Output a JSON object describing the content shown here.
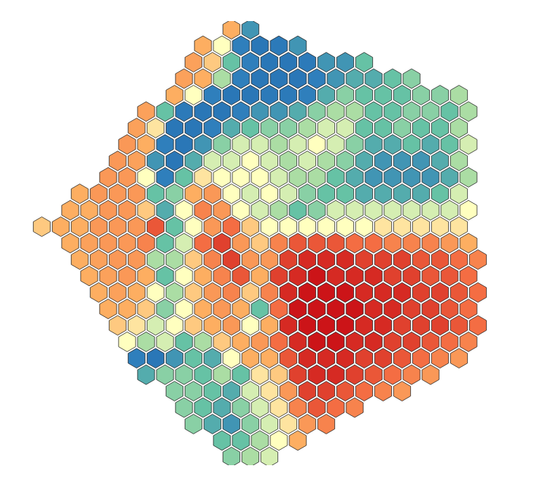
{
  "chart_data": {
    "type": "heatmap",
    "marker": "hexagon",
    "tick_labels": false,
    "zlim": [
      0,
      10
    ],
    "cells": [
      [
        null,
        null,
        null,
        null,
        null,
        null,
        null,
        null,
        null,
        null,
        6.5,
        2,
        null,
        null,
        null,
        null,
        null,
        null,
        null,
        null,
        null,
        null,
        null,
        null
      ],
      [
        null,
        null,
        null,
        null,
        null,
        null,
        null,
        null,
        6.5,
        5,
        1.5,
        1,
        1.2,
        2,
        null,
        null,
        null,
        null,
        null,
        null,
        null,
        null,
        null,
        null
      ],
      [
        null,
        null,
        null,
        null,
        null,
        null,
        null,
        null,
        6.8,
        6,
        3,
        1.5,
        1,
        1,
        1.2,
        2,
        2,
        3,
        null,
        null,
        null,
        null,
        null,
        null
      ],
      [
        null,
        null,
        null,
        null,
        null,
        null,
        null,
        6.8,
        6.5,
        4,
        1.5,
        1,
        1,
        1,
        1.5,
        2,
        2.5,
        2.5,
        3,
        3.5,
        null,
        null,
        null,
        null
      ],
      [
        null,
        null,
        null,
        null,
        null,
        null,
        null,
        6.5,
        5,
        1.5,
        1,
        1,
        1.2,
        1.2,
        1.5,
        2.5,
        3.5,
        3,
        3,
        3,
        3.5,
        3.5,
        4,
        null
      ],
      [
        null,
        null,
        null,
        null,
        null,
        6.8,
        3,
        1.2,
        1,
        1,
        1.5,
        2,
        2,
        2.5,
        3.5,
        4,
        4,
        3,
        3,
        3.5,
        3.5,
        3,
        4,
        null
      ],
      [
        null,
        null,
        null,
        null,
        null,
        6.8,
        5.5,
        1,
        1,
        1.5,
        2.5,
        3,
        3.5,
        3.5,
        4,
        4.5,
        4.5,
        3,
        3,
        3.5,
        3,
        3,
        4,
        null
      ],
      [
        null,
        null,
        null,
        null,
        7,
        6.5,
        1.5,
        1,
        2,
        3.5,
        4.5,
        4.5,
        4,
        4.5,
        5,
        4.5,
        3.5,
        2.5,
        2.5,
        3,
        2.5,
        3,
        4.5,
        null
      ],
      [
        null,
        null,
        null,
        null,
        7,
        6.8,
        2,
        1,
        2.5,
        4.5,
        4.5,
        5,
        4.5,
        4,
        4.5,
        4,
        3.5,
        2.5,
        2,
        2,
        2,
        2.5,
        4,
        null
      ],
      [
        null,
        null,
        null,
        7,
        7,
        5,
        1.5,
        3,
        5.5,
        5,
        5,
        5,
        4.5,
        4,
        4,
        3,
        2.5,
        2,
        2,
        2,
        2,
        2.5,
        4,
        null
      ],
      [
        null,
        null,
        6.5,
        7,
        7,
        7,
        3,
        3.5,
        6.5,
        7,
        5,
        4.5,
        5,
        4.5,
        3.5,
        3,
        3,
        2.5,
        2.5,
        2.5,
        2.5,
        3,
        4.5,
        null
      ],
      [
        null,
        6.5,
        6.5,
        7,
        7,
        6,
        2.5,
        5,
        7.5,
        7,
        5,
        4.5,
        4,
        3,
        3.5,
        4.5,
        4.5,
        4.5,
        4.5,
        4.5,
        4.5,
        4.5,
        5,
        null
      ],
      [
        6,
        6.5,
        6.5,
        7,
        7,
        7,
        8.5,
        3,
        5,
        7,
        8,
        6,
        5,
        5,
        5,
        5,
        5,
        5,
        5.5,
        5.5,
        5.5,
        5.5,
        5.5,
        null
      ],
      [
        null,
        6.5,
        6.8,
        7,
        7,
        7.5,
        3,
        4.5,
        8,
        9,
        7,
        6,
        7.5,
        8.5,
        8.5,
        8.5,
        8,
        8,
        7.5,
        7.5,
        7.5,
        7,
        6.5,
        null
      ],
      [
        null,
        null,
        6.5,
        6.8,
        7,
        7,
        4,
        4,
        6,
        7.5,
        9,
        7,
        7,
        9,
        9.5,
        9.5,
        9.5,
        9,
        9,
        9,
        8.5,
        8.5,
        8,
        7.5
      ],
      [
        null,
        null,
        6.5,
        6.8,
        7,
        6.5,
        3,
        5,
        6.5,
        7.5,
        8.5,
        6.5,
        9,
        9.5,
        10,
        9.5,
        9.5,
        9.5,
        9,
        9,
        8.5,
        8.5,
        8,
        null
      ],
      [
        null,
        null,
        null,
        6.5,
        6.8,
        6.5,
        5,
        4,
        6,
        7,
        7.5,
        6,
        7.5,
        9.5,
        10,
        10,
        10,
        9.5,
        9.5,
        9.5,
        9,
        9,
        8.5,
        8
      ],
      [
        null,
        null,
        null,
        6.5,
        6.5,
        6,
        3.5,
        5,
        6.5,
        7,
        6.5,
        3,
        8,
        10,
        10,
        10,
        10,
        9.5,
        9.5,
        9,
        9,
        8.5,
        8,
        null
      ],
      [
        null,
        null,
        null,
        null,
        6,
        5.5,
        4.5,
        5,
        6,
        6.5,
        7,
        5,
        6.5,
        9.5,
        10,
        10,
        10,
        9.5,
        9.5,
        9,
        9,
        9,
        8.5,
        8
      ],
      [
        null,
        null,
        null,
        null,
        5,
        4,
        4.5,
        3,
        4,
        6,
        6.5,
        7,
        8,
        9.5,
        10,
        10,
        9.5,
        9.5,
        9,
        9,
        8.5,
        8,
        7.5,
        null
      ],
      [
        null,
        null,
        null,
        null,
        null,
        1.5,
        1,
        2,
        3,
        2.5,
        5,
        6.5,
        6.5,
        8.5,
        9.5,
        9.5,
        9.5,
        9,
        9,
        8.5,
        8,
        7.5,
        7,
        null
      ],
      [
        null,
        null,
        null,
        null,
        null,
        2.5,
        3.5,
        3.5,
        3,
        4,
        3,
        5.5,
        6,
        9,
        9.5,
        9.5,
        9,
        8.5,
        8,
        7.5,
        7,
        null,
        null,
        null
      ],
      [
        null,
        null,
        null,
        null,
        null,
        null,
        null,
        3.5,
        3.5,
        3,
        2.5,
        4.5,
        5.5,
        7,
        9,
        9,
        8.5,
        8,
        7.5,
        7,
        null,
        null,
        null,
        null
      ],
      [
        null,
        null,
        null,
        null,
        null,
        null,
        null,
        3.5,
        3,
        2.5,
        3.5,
        4.5,
        5.5,
        7.5,
        8.5,
        8,
        7.5,
        null,
        null,
        null,
        null,
        null,
        null,
        null
      ],
      [
        null,
        null,
        null,
        null,
        null,
        null,
        null,
        null,
        3.5,
        2.5,
        2,
        3.5,
        4.5,
        5.5,
        7,
        7.5,
        null,
        null,
        null,
        null,
        null,
        null,
        null,
        null
      ],
      [
        null,
        null,
        null,
        null,
        null,
        null,
        null,
        null,
        null,
        3,
        3,
        4,
        5,
        6.5,
        null,
        null,
        null,
        null,
        null,
        null,
        null,
        null,
        null,
        null
      ],
      [
        null,
        null,
        null,
        null,
        null,
        null,
        null,
        null,
        null,
        null,
        3.5,
        4,
        4.5,
        null,
        null,
        null,
        null,
        null,
        null,
        null,
        null,
        null,
        null,
        null
      ]
    ]
  }
}
